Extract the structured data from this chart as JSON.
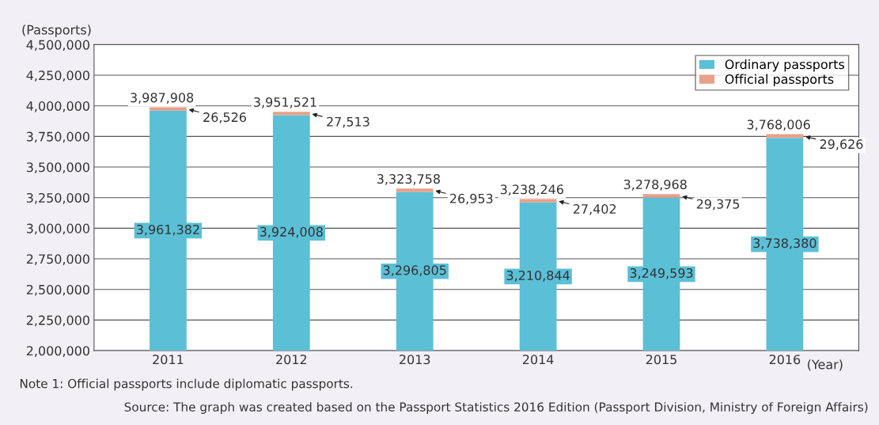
{
  "chart_data": {
    "type": "bar",
    "stacked": true,
    "ylabel": "(Passports)",
    "xlabel": "(Year)",
    "categories": [
      "2011",
      "2012",
      "2013",
      "2014",
      "2015",
      "2016"
    ],
    "series": [
      {
        "name": "Ordinary passports",
        "color": "#5bbfd6",
        "values": [
          3961382,
          3924008,
          3296805,
          3210844,
          3249593,
          3738380
        ],
        "value_labels": [
          "3,961,382",
          "3,924,008",
          "3,296,805",
          "3,210,844",
          "3,249,593",
          "3,738,380"
        ]
      },
      {
        "name": "Official passports",
        "color": "#e8a08a",
        "base": [
          3961382,
          3924008,
          3296805,
          3210844,
          3249593,
          3738380
        ],
        "values": [
          26526,
          27513,
          26953,
          27402,
          29375,
          29626
        ],
        "value_labels": [
          "26,526",
          "27,513",
          "26,953",
          "27,402",
          "29,375",
          "29,626"
        ]
      }
    ],
    "totals": [
      "3,987,908",
      "3,951,521",
      "3,323,758",
      "3,238,246",
      "3,278,968",
      "3,768,006"
    ],
    "ylim": [
      2000000,
      4500000
    ],
    "yticks": [
      {
        "value": 2000000,
        "label": "2,000,000"
      },
      {
        "value": 2250000,
        "label": "2,250,000"
      },
      {
        "value": 2500000,
        "label": "2,500,000"
      },
      {
        "value": 2750000,
        "label": "2,750,000"
      },
      {
        "value": 3000000,
        "label": "3,000,000"
      },
      {
        "value": 3250000,
        "label": "3,250,000"
      },
      {
        "value": 3500000,
        "label": "3,500,000"
      },
      {
        "value": 3750000,
        "label": "3,750,000"
      },
      {
        "value": 4000000,
        "label": "4,000,000"
      },
      {
        "value": 4250000,
        "label": "4,250,000"
      },
      {
        "value": 4500000,
        "label": "4,500,000"
      }
    ],
    "grid": "y",
    "legend": "top right",
    "annotations": [
      "Note 1: Official passports include diplomatic passports.",
      "Source: The graph was created based on the Passport Statistics 2016 Edition (Passport Division, Ministry of Foreign Affairs)"
    ]
  }
}
